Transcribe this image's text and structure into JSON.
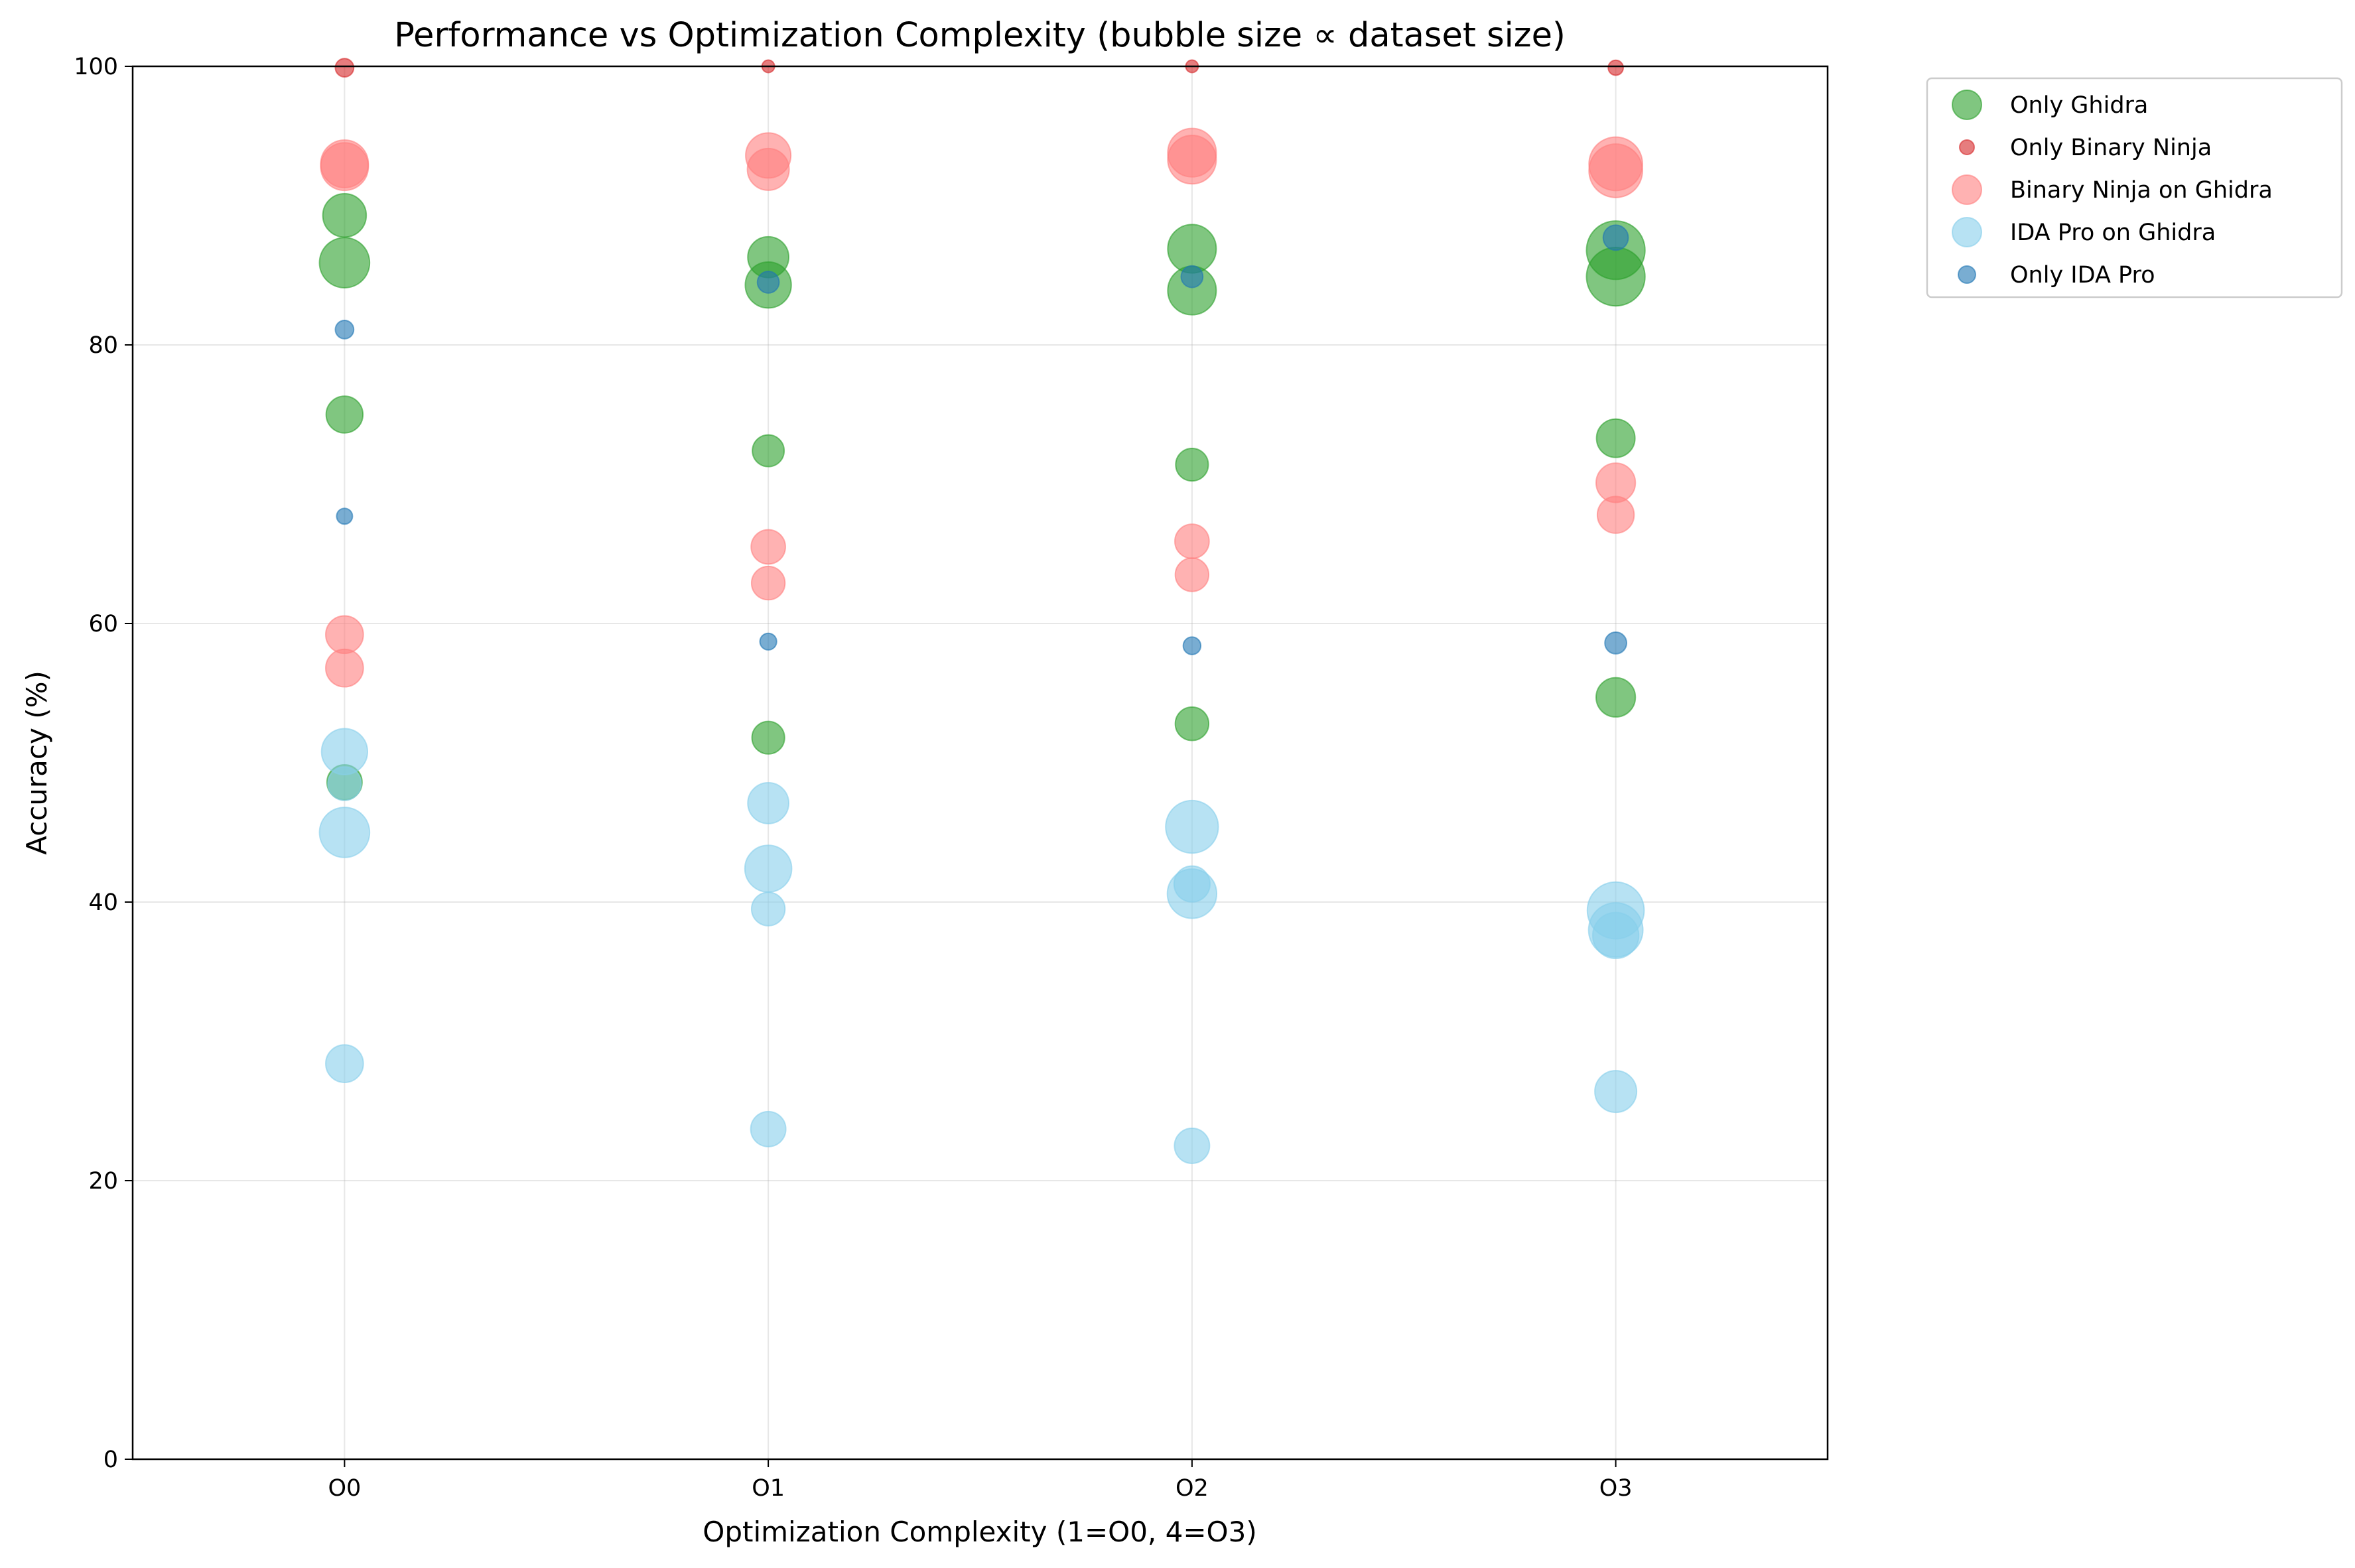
{
  "chart_data": {
    "type": "scatter",
    "title": "Performance vs Optimization Complexity (bubble size ∝ dataset size)",
    "xlabel": "Optimization Complexity (1=O0, 4=O3)",
    "ylabel": "Accuracy (%)",
    "categories": [
      "O0",
      "O1",
      "O2",
      "O3"
    ],
    "xlim": [
      0.5,
      4.5
    ],
    "ylim": [
      0,
      100
    ],
    "yticks": [
      0,
      20,
      40,
      60,
      80,
      100
    ],
    "grid": true,
    "legend_position": "outside-top-right",
    "series": [
      {
        "name": "Only Ghidra",
        "color": "#2ca02c",
        "alpha": 0.6,
        "points": [
          {
            "x": 1,
            "y": 89.3,
            "size": 5.2
          },
          {
            "x": 1,
            "y": 85.9,
            "size": 6.0
          },
          {
            "x": 1,
            "y": 75.0,
            "size": 4.4
          },
          {
            "x": 1,
            "y": 48.6,
            "size": 4.2
          },
          {
            "x": 2,
            "y": 86.3,
            "size": 4.9
          },
          {
            "x": 2,
            "y": 84.3,
            "size": 5.5
          },
          {
            "x": 2,
            "y": 72.4,
            "size": 3.8
          },
          {
            "x": 2,
            "y": 51.8,
            "size": 3.9
          },
          {
            "x": 3,
            "y": 86.9,
            "size": 5.8
          },
          {
            "x": 3,
            "y": 83.9,
            "size": 5.8
          },
          {
            "x": 3,
            "y": 71.4,
            "size": 3.9
          },
          {
            "x": 3,
            "y": 52.8,
            "size": 4.0
          },
          {
            "x": 4,
            "y": 86.8,
            "size": 7.0
          },
          {
            "x": 4,
            "y": 84.9,
            "size": 7.0
          },
          {
            "x": 4,
            "y": 73.3,
            "size": 4.6
          },
          {
            "x": 4,
            "y": 54.7,
            "size": 4.7
          }
        ]
      },
      {
        "name": "Only Binary Ninja",
        "color": "#d62728",
        "alpha": 0.6,
        "points": [
          {
            "x": 1,
            "y": 99.9,
            "size": 2.2
          },
          {
            "x": 2,
            "y": 100.0,
            "size": 1.5
          },
          {
            "x": 3,
            "y": 100.0,
            "size": 1.5
          },
          {
            "x": 4,
            "y": 99.9,
            "size": 1.8
          }
        ]
      },
      {
        "name": "Binary Ninja on Ghidra",
        "color": "#ff7f7f",
        "alpha": 0.6,
        "points": [
          {
            "x": 1,
            "y": 93.0,
            "size": 5.7
          },
          {
            "x": 1,
            "y": 92.8,
            "size": 5.7
          },
          {
            "x": 1,
            "y": 59.2,
            "size": 4.5
          },
          {
            "x": 1,
            "y": 56.8,
            "size": 4.5
          },
          {
            "x": 2,
            "y": 93.6,
            "size": 5.4
          },
          {
            "x": 2,
            "y": 92.6,
            "size": 5.0
          },
          {
            "x": 2,
            "y": 65.5,
            "size": 4.1
          },
          {
            "x": 2,
            "y": 62.9,
            "size": 4.0
          },
          {
            "x": 3,
            "y": 93.8,
            "size": 5.8
          },
          {
            "x": 3,
            "y": 93.3,
            "size": 5.8
          },
          {
            "x": 3,
            "y": 65.9,
            "size": 4.1
          },
          {
            "x": 3,
            "y": 63.5,
            "size": 4.0
          },
          {
            "x": 4,
            "y": 93.0,
            "size": 6.4
          },
          {
            "x": 4,
            "y": 92.5,
            "size": 6.4
          },
          {
            "x": 4,
            "y": 70.1,
            "size": 4.7
          },
          {
            "x": 4,
            "y": 67.8,
            "size": 4.4
          }
        ]
      },
      {
        "name": "IDA Pro on Ghidra",
        "color": "#87ceeb",
        "alpha": 0.6,
        "points": [
          {
            "x": 1,
            "y": 50.8,
            "size": 5.5
          },
          {
            "x": 1,
            "y": 45.0,
            "size": 6.0
          },
          {
            "x": 1,
            "y": 28.4,
            "size": 4.5
          },
          {
            "x": 1,
            "y": 48.5,
            "size": 4.0
          },
          {
            "x": 2,
            "y": 47.1,
            "size": 4.9
          },
          {
            "x": 2,
            "y": 42.4,
            "size": 5.6
          },
          {
            "x": 2,
            "y": 39.5,
            "size": 4.0
          },
          {
            "x": 2,
            "y": 23.7,
            "size": 4.2
          },
          {
            "x": 3,
            "y": 45.4,
            "size": 6.3
          },
          {
            "x": 3,
            "y": 41.3,
            "size": 4.3
          },
          {
            "x": 3,
            "y": 40.6,
            "size": 5.9
          },
          {
            "x": 3,
            "y": 22.5,
            "size": 4.2
          },
          {
            "x": 4,
            "y": 39.4,
            "size": 6.8
          },
          {
            "x": 4,
            "y": 38.0,
            "size": 6.5
          },
          {
            "x": 4,
            "y": 37.6,
            "size": 5.5
          },
          {
            "x": 4,
            "y": 26.4,
            "size": 5.0
          }
        ]
      },
      {
        "name": "Only IDA Pro",
        "color": "#1f77b4",
        "alpha": 0.6,
        "points": [
          {
            "x": 1,
            "y": 81.1,
            "size": 2.2
          },
          {
            "x": 1,
            "y": 67.7,
            "size": 1.9
          },
          {
            "x": 2,
            "y": 84.5,
            "size": 2.6
          },
          {
            "x": 2,
            "y": 58.7,
            "size": 2.0
          },
          {
            "x": 3,
            "y": 84.9,
            "size": 2.6
          },
          {
            "x": 3,
            "y": 58.4,
            "size": 2.1
          },
          {
            "x": 4,
            "y": 87.7,
            "size": 3.0
          },
          {
            "x": 4,
            "y": 58.6,
            "size": 2.6
          }
        ]
      }
    ]
  }
}
